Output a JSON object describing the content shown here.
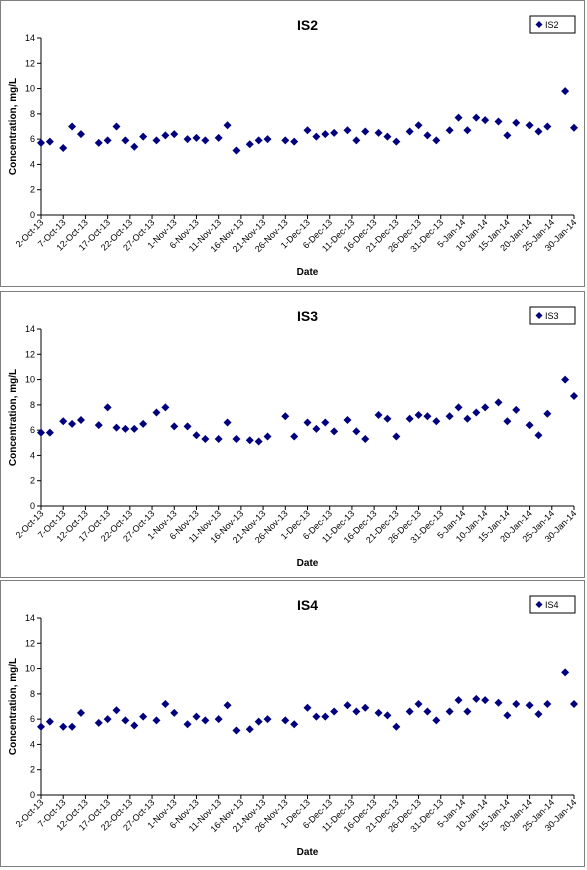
{
  "chart_data": [
    {
      "type": "scatter",
      "title": "IS2",
      "xlabel": "Date",
      "ylabel": "Concentration, mg/L",
      "ylim": [
        0,
        14
      ],
      "yticks": [
        0,
        2,
        4,
        6,
        8,
        10,
        12,
        14
      ],
      "xticks": [
        "2-Oct-13",
        "7-Oct-13",
        "12-Oct-13",
        "17-Oct-13",
        "22-Oct-13",
        "27-Oct-13",
        "1-Nov-13",
        "6-Nov-13",
        "11-Nov-13",
        "16-Nov-13",
        "21-Nov-13",
        "26-Nov-13",
        "1-Dec-13",
        "6-Dec-13",
        "11-Dec-13",
        "16-Dec-13",
        "21-Dec-13",
        "26-Dec-13",
        "31-Dec-13",
        "5-Jan-14",
        "10-Jan-14",
        "15-Jan-14",
        "20-Jan-14",
        "25-Jan-14",
        "30-Jan-14"
      ],
      "legend_position": "top-right",
      "grid": false,
      "color": "#00007f",
      "series": [
        {
          "name": "IS2",
          "x": [
            "2-Oct-13",
            "4-Oct-13",
            "7-Oct-13",
            "9-Oct-13",
            "11-Oct-13",
            "15-Oct-13",
            "17-Oct-13",
            "19-Oct-13",
            "21-Oct-13",
            "23-Oct-13",
            "25-Oct-13",
            "28-Oct-13",
            "30-Oct-13",
            "1-Nov-13",
            "4-Nov-13",
            "6-Nov-13",
            "8-Nov-13",
            "11-Nov-13",
            "13-Nov-13",
            "15-Nov-13",
            "18-Nov-13",
            "20-Nov-13",
            "22-Nov-13",
            "26-Nov-13",
            "28-Nov-13",
            "1-Dec-13",
            "3-Dec-13",
            "5-Dec-13",
            "7-Dec-13",
            "10-Dec-13",
            "12-Dec-13",
            "14-Dec-13",
            "17-Dec-13",
            "19-Dec-13",
            "21-Dec-13",
            "24-Dec-13",
            "26-Dec-13",
            "28-Dec-13",
            "30-Dec-13",
            "2-Jan-14",
            "4-Jan-14",
            "6-Jan-14",
            "8-Jan-14",
            "10-Jan-14",
            "13-Jan-14",
            "15-Jan-14",
            "17-Jan-14",
            "20-Jan-14",
            "22-Jan-14",
            "24-Jan-14",
            "28-Jan-14",
            "30-Jan-14"
          ],
          "y": [
            5.7,
            5.8,
            5.3,
            7.0,
            6.4,
            5.7,
            5.9,
            7.0,
            5.9,
            5.4,
            6.2,
            5.9,
            6.3,
            6.4,
            6.0,
            6.1,
            5.9,
            6.1,
            7.1,
            5.1,
            5.6,
            5.9,
            6.0,
            5.9,
            5.8,
            6.7,
            6.2,
            6.4,
            6.5,
            6.7,
            5.9,
            6.6,
            6.5,
            6.2,
            5.8,
            6.6,
            7.1,
            6.3,
            5.9,
            6.7,
            7.7,
            6.7,
            7.7,
            7.5,
            7.4,
            6.3,
            7.3,
            7.1,
            6.6,
            7.0,
            9.8,
            6.9
          ]
        }
      ]
    },
    {
      "type": "scatter",
      "title": "IS3",
      "xlabel": "Date",
      "ylabel": "Concentration, mg/L",
      "ylim": [
        0,
        14
      ],
      "yticks": [
        0,
        2,
        4,
        6,
        8,
        10,
        12,
        14
      ],
      "xticks": [
        "2-Oct-13",
        "7-Oct-13",
        "12-Oct-13",
        "17-Oct-13",
        "22-Oct-13",
        "27-Oct-13",
        "1-Nov-13",
        "6-Nov-13",
        "11-Nov-13",
        "16-Nov-13",
        "21-Nov-13",
        "26-Nov-13",
        "1-Dec-13",
        "6-Dec-13",
        "11-Dec-13",
        "16-Dec-13",
        "21-Dec-13",
        "26-Dec-13",
        "31-Dec-13",
        "5-Jan-14",
        "10-Jan-14",
        "15-Jan-14",
        "20-Jan-14",
        "25-Jan-14",
        "30-Jan-14"
      ],
      "legend_position": "top-right",
      "grid": false,
      "color": "#00007f",
      "series": [
        {
          "name": "IS3",
          "x": [
            "2-Oct-13",
            "4-Oct-13",
            "7-Oct-13",
            "9-Oct-13",
            "11-Oct-13",
            "15-Oct-13",
            "17-Oct-13",
            "19-Oct-13",
            "21-Oct-13",
            "23-Oct-13",
            "25-Oct-13",
            "28-Oct-13",
            "30-Oct-13",
            "1-Nov-13",
            "4-Nov-13",
            "6-Nov-13",
            "8-Nov-13",
            "11-Nov-13",
            "13-Nov-13",
            "15-Nov-13",
            "18-Nov-13",
            "20-Nov-13",
            "22-Nov-13",
            "26-Nov-13",
            "28-Nov-13",
            "1-Dec-13",
            "3-Dec-13",
            "5-Dec-13",
            "7-Dec-13",
            "10-Dec-13",
            "12-Dec-13",
            "14-Dec-13",
            "17-Dec-13",
            "19-Dec-13",
            "21-Dec-13",
            "24-Dec-13",
            "26-Dec-13",
            "28-Dec-13",
            "30-Dec-13",
            "2-Jan-14",
            "4-Jan-14",
            "6-Jan-14",
            "8-Jan-14",
            "10-Jan-14",
            "13-Jan-14",
            "15-Jan-14",
            "17-Jan-14",
            "20-Jan-14",
            "22-Jan-14",
            "24-Jan-14",
            "28-Jan-14",
            "30-Jan-14"
          ],
          "y": [
            5.8,
            5.8,
            6.7,
            6.5,
            6.8,
            6.4,
            7.8,
            6.2,
            6.1,
            6.1,
            6.5,
            7.4,
            7.8,
            6.3,
            6.3,
            5.6,
            5.3,
            5.3,
            6.6,
            5.3,
            5.2,
            5.1,
            5.5,
            7.1,
            5.5,
            6.6,
            6.1,
            6.6,
            5.9,
            6.8,
            5.9,
            5.3,
            7.2,
            6.9,
            5.5,
            6.9,
            7.2,
            7.1,
            6.7,
            7.1,
            7.8,
            6.9,
            7.4,
            7.8,
            8.2,
            6.7,
            7.6,
            6.4,
            5.6,
            7.3,
            10.0,
            8.7
          ]
        }
      ]
    },
    {
      "type": "scatter",
      "title": "IS4",
      "xlabel": "Date",
      "ylabel": "Concentration, mg/L",
      "ylim": [
        0,
        14
      ],
      "yticks": [
        0,
        2,
        4,
        6,
        8,
        10,
        12,
        14
      ],
      "xticks": [
        "2-Oct-13",
        "7-Oct-13",
        "12-Oct-13",
        "17-Oct-13",
        "22-Oct-13",
        "27-Oct-13",
        "1-Nov-13",
        "6-Nov-13",
        "11-Nov-13",
        "16-Nov-13",
        "21-Nov-13",
        "26-Nov-13",
        "1-Dec-13",
        "6-Dec-13",
        "11-Dec-13",
        "16-Dec-13",
        "21-Dec-13",
        "26-Dec-13",
        "31-Dec-13",
        "5-Jan-14",
        "10-Jan-14",
        "15-Jan-14",
        "20-Jan-14",
        "25-Jan-14",
        "30-Jan-14"
      ],
      "legend_position": "top-right",
      "grid": false,
      "color": "#00007f",
      "series": [
        {
          "name": "IS4",
          "x": [
            "2-Oct-13",
            "4-Oct-13",
            "7-Oct-13",
            "9-Oct-13",
            "11-Oct-13",
            "15-Oct-13",
            "17-Oct-13",
            "19-Oct-13",
            "21-Oct-13",
            "23-Oct-13",
            "25-Oct-13",
            "28-Oct-13",
            "30-Oct-13",
            "1-Nov-13",
            "4-Nov-13",
            "6-Nov-13",
            "8-Nov-13",
            "11-Nov-13",
            "13-Nov-13",
            "15-Nov-13",
            "18-Nov-13",
            "20-Nov-13",
            "22-Nov-13",
            "26-Nov-13",
            "28-Nov-13",
            "1-Dec-13",
            "3-Dec-13",
            "5-Dec-13",
            "7-Dec-13",
            "10-Dec-13",
            "12-Dec-13",
            "14-Dec-13",
            "17-Dec-13",
            "19-Dec-13",
            "21-Dec-13",
            "24-Dec-13",
            "26-Dec-13",
            "28-Dec-13",
            "30-Dec-13",
            "2-Jan-14",
            "4-Jan-14",
            "6-Jan-14",
            "8-Jan-14",
            "10-Jan-14",
            "13-Jan-14",
            "15-Jan-14",
            "17-Jan-14",
            "20-Jan-14",
            "22-Jan-14",
            "24-Jan-14",
            "28-Jan-14",
            "30-Jan-14"
          ],
          "y": [
            5.4,
            5.8,
            5.4,
            5.4,
            6.5,
            5.7,
            6.0,
            6.7,
            5.9,
            5.5,
            6.2,
            5.9,
            7.2,
            6.5,
            5.6,
            6.2,
            5.9,
            6.0,
            7.1,
            5.1,
            5.2,
            5.8,
            6.0,
            5.9,
            5.6,
            6.9,
            6.2,
            6.2,
            6.6,
            7.1,
            6.6,
            6.9,
            6.5,
            6.3,
            5.4,
            6.6,
            7.2,
            6.6,
            5.9,
            6.6,
            7.5,
            6.6,
            7.6,
            7.5,
            7.3,
            6.3,
            7.2,
            7.1,
            6.4,
            7.2,
            9.7,
            7.2
          ]
        }
      ]
    }
  ]
}
